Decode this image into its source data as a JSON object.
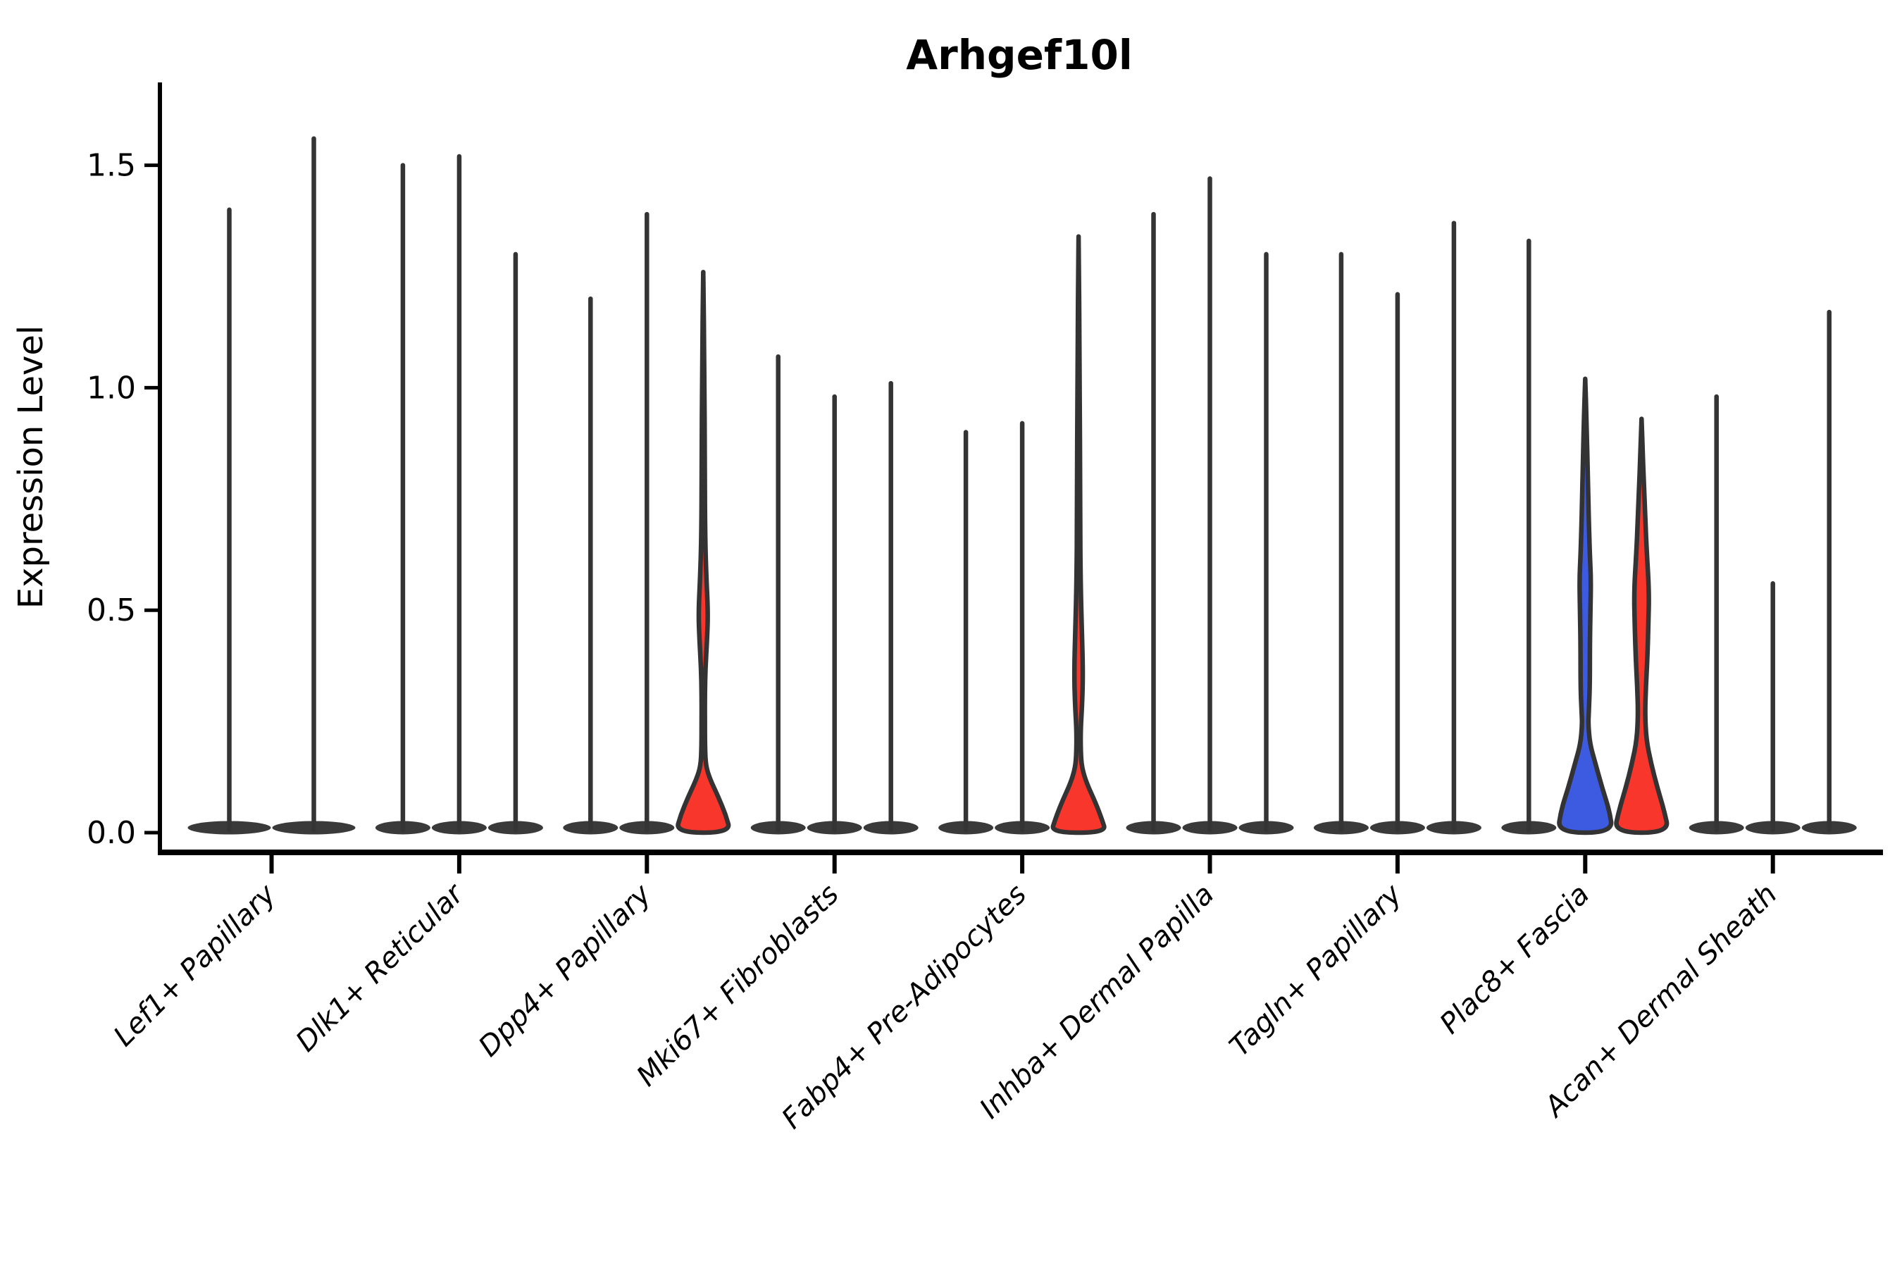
{
  "title": "Arhgef10l",
  "ylabel": "Expression Level",
  "chart_data": {
    "type": "violin",
    "title": "Arhgef10l",
    "xlabel": "",
    "ylabel": "Expression Level",
    "ylim": [
      -0.06,
      1.69
    ],
    "yticks": [
      "0.0",
      "0.5",
      "1.0",
      "1.5"
    ],
    "ytick_values": [
      0.0,
      0.5,
      1.0,
      1.5
    ],
    "grid": false,
    "legend_position": "none",
    "xtick_rotation": 45,
    "xtick_style": "italic",
    "categories": [
      "Lef1+ Papillary",
      "Dlk1+ Reticular",
      "Dpp4+ Papillary",
      "Mki67+ Fibroblasts",
      "Fabp4+ Pre-Adipocytes",
      "Inhba+ Dermal Papilla",
      "Tagln+ Papillary",
      "Plac8+ Fascia",
      "Acan+ Dermal Sheath"
    ],
    "colors": {
      "spike": "#343434",
      "outline": "#333333",
      "red": "#f8362b",
      "blue": "#3d5be0"
    },
    "groups": [
      {
        "category": "Lef1+ Papillary",
        "violins": [
          {
            "max": 1.4,
            "style": "spike",
            "color": "#343434"
          },
          {
            "max": 1.56,
            "style": "spike",
            "color": "#343434"
          }
        ]
      },
      {
        "category": "Dlk1+ Reticular",
        "violins": [
          {
            "max": 1.5,
            "style": "spike",
            "color": "#343434"
          },
          {
            "max": 1.52,
            "style": "spike",
            "color": "#343434"
          },
          {
            "max": 1.3,
            "style": "spike",
            "color": "#343434"
          }
        ]
      },
      {
        "category": "Dpp4+ Papillary",
        "violins": [
          {
            "max": 1.2,
            "style": "spike",
            "color": "#343434"
          },
          {
            "max": 1.39,
            "style": "spike",
            "color": "#343434"
          },
          {
            "max": 1.26,
            "style": "shaped",
            "color": "#f8362b",
            "profile": [
              [
                1.26,
                0.0
              ],
              [
                1.05,
                0.04
              ],
              [
                0.82,
                0.055
              ],
              [
                0.66,
                0.07
              ],
              [
                0.57,
                0.115
              ],
              [
                0.49,
                0.175
              ],
              [
                0.43,
                0.135
              ],
              [
                0.37,
                0.08
              ],
              [
                0.31,
                0.06
              ],
              [
                0.25,
                0.06
              ],
              [
                0.19,
                0.065
              ],
              [
                0.15,
                0.095
              ],
              [
                0.12,
                0.25
              ],
              [
                0.08,
                0.55
              ],
              [
                0.04,
                0.82
              ],
              [
                0.0,
                1.0
              ]
            ]
          }
        ]
      },
      {
        "category": "Mki67+ Fibroblasts",
        "violins": [
          {
            "max": 1.07,
            "style": "spike",
            "color": "#343434"
          },
          {
            "max": 0.98,
            "style": "spike",
            "color": "#343434"
          },
          {
            "max": 1.01,
            "style": "spike",
            "color": "#343434"
          }
        ]
      },
      {
        "category": "Fabp4+ Pre-Adipocytes",
        "violins": [
          {
            "max": 0.9,
            "style": "spike",
            "color": "#343434"
          },
          {
            "max": 0.92,
            "style": "spike",
            "color": "#343434"
          },
          {
            "max": 1.34,
            "style": "shaped",
            "color": "#f8362b",
            "profile": [
              [
                1.34,
                0.0
              ],
              [
                1.05,
                0.04
              ],
              [
                0.72,
                0.055
              ],
              [
                0.56,
                0.075
              ],
              [
                0.45,
                0.12
              ],
              [
                0.36,
                0.16
              ],
              [
                0.29,
                0.13
              ],
              [
                0.23,
                0.075
              ],
              [
                0.18,
                0.08
              ],
              [
                0.146,
                0.12
              ],
              [
                0.11,
                0.3
              ],
              [
                0.07,
                0.6
              ],
              [
                0.03,
                0.85
              ],
              [
                0.0,
                1.0
              ]
            ]
          }
        ]
      },
      {
        "category": "Inhba+ Dermal Papilla",
        "violins": [
          {
            "max": 1.39,
            "style": "spike",
            "color": "#343434"
          },
          {
            "max": 1.47,
            "style": "spike",
            "color": "#343434"
          },
          {
            "max": 1.3,
            "style": "spike",
            "color": "#343434"
          }
        ]
      },
      {
        "category": "Tagln+ Papillary",
        "violins": [
          {
            "max": 1.3,
            "style": "spike",
            "color": "#343434"
          },
          {
            "max": 1.21,
            "style": "spike",
            "color": "#343434"
          },
          {
            "max": 1.37,
            "style": "spike",
            "color": "#343434"
          }
        ]
      },
      {
        "category": "Plac8+ Fascia",
        "violins": [
          {
            "max": 1.33,
            "style": "spike",
            "color": "#343434"
          },
          {
            "max": 1.02,
            "style": "shaped",
            "color": "#3d5be0",
            "profile": [
              [
                1.02,
                0.0
              ],
              [
                0.92,
                0.05
              ],
              [
                0.79,
                0.1
              ],
              [
                0.7,
                0.13
              ],
              [
                0.63,
                0.165
              ],
              [
                0.57,
                0.21
              ],
              [
                0.5,
                0.19
              ],
              [
                0.42,
                0.17
              ],
              [
                0.33,
                0.17
              ],
              [
                0.27,
                0.13
              ],
              [
                0.245,
                0.11
              ],
              [
                0.2,
                0.17
              ],
              [
                0.155,
                0.375
              ],
              [
                0.1,
                0.62
              ],
              [
                0.05,
                0.88
              ],
              [
                0.0,
                1.0
              ]
            ]
          },
          {
            "max": 0.93,
            "style": "shaped",
            "color": "#f8362b",
            "profile": [
              [
                0.93,
                0.0
              ],
              [
                0.84,
                0.05
              ],
              [
                0.77,
                0.095
              ],
              [
                0.7,
                0.14
              ],
              [
                0.63,
                0.19
              ],
              [
                0.54,
                0.275
              ],
              [
                0.47,
                0.25
              ],
              [
                0.39,
                0.21
              ],
              [
                0.33,
                0.16
              ],
              [
                0.27,
                0.125
              ],
              [
                0.21,
                0.17
              ],
              [
                0.155,
                0.35
              ],
              [
                0.1,
                0.58
              ],
              [
                0.05,
                0.82
              ],
              [
                0.0,
                1.0
              ]
            ]
          }
        ]
      },
      {
        "category": "Acan+ Dermal Sheath",
        "violins": [
          {
            "max": 0.98,
            "style": "spike",
            "color": "#343434"
          },
          {
            "max": 0.56,
            "style": "spike",
            "color": "#343434"
          },
          {
            "max": 1.17,
            "style": "spike",
            "color": "#343434"
          }
        ]
      }
    ]
  }
}
